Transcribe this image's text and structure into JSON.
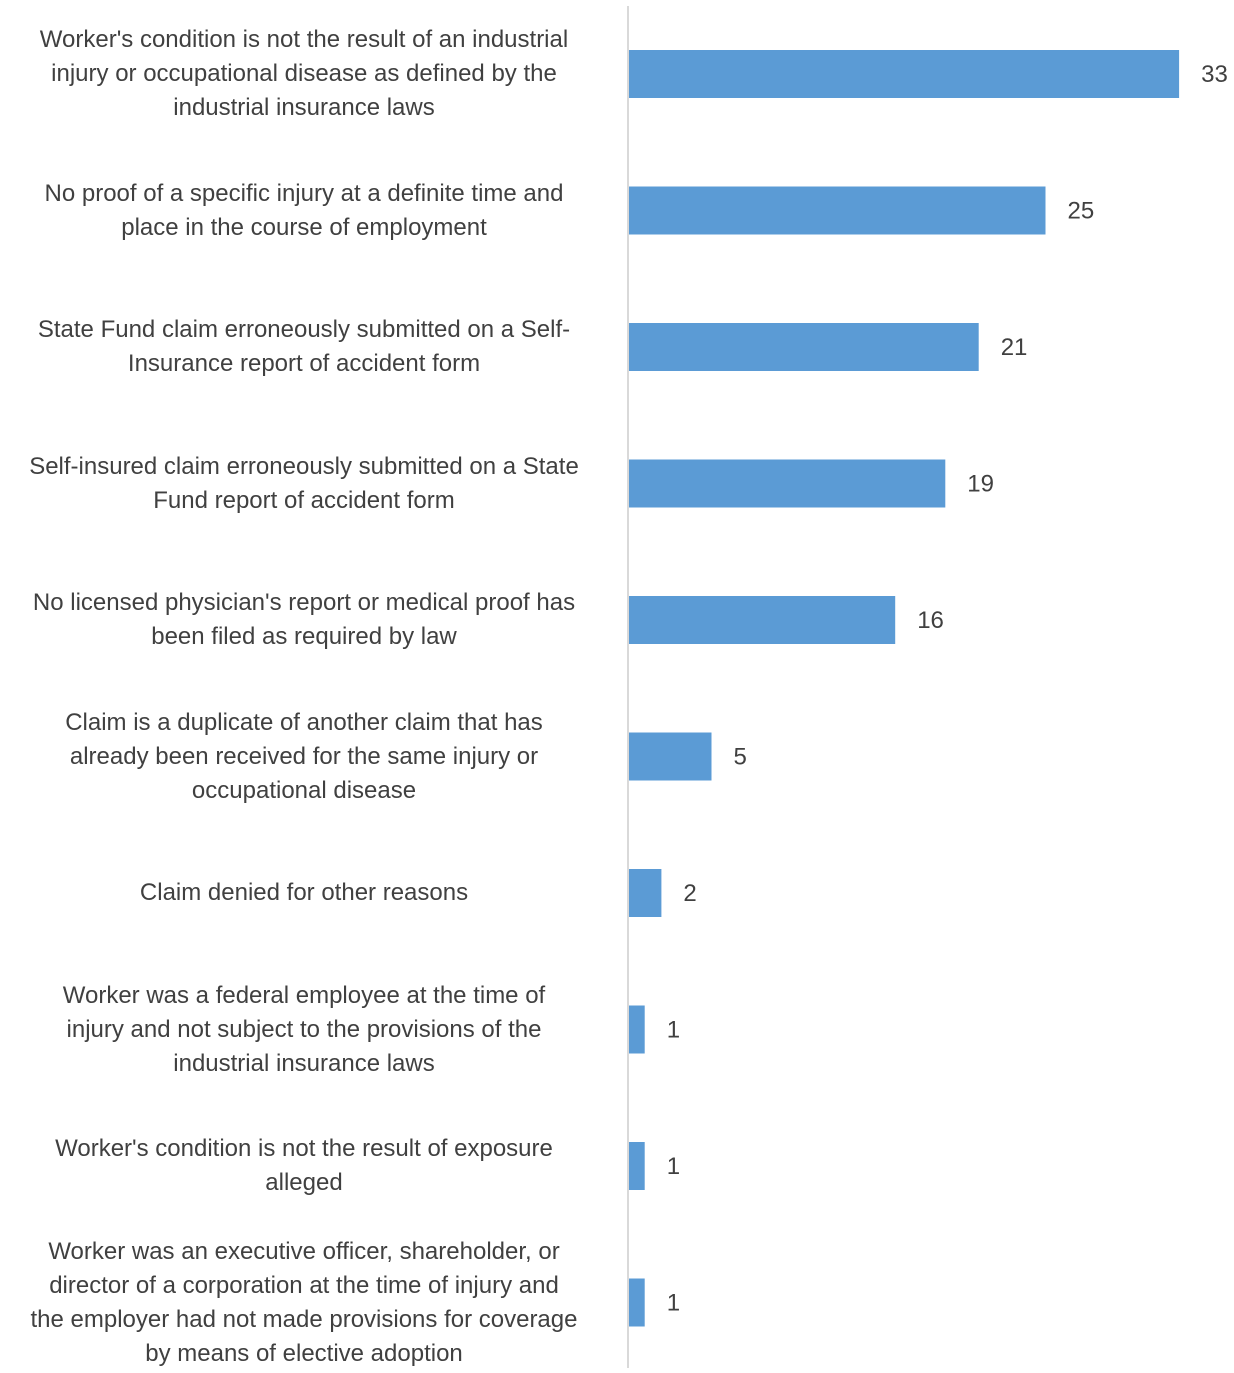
{
  "chart_data": {
    "type": "bar",
    "orientation": "horizontal",
    "title": "",
    "xlabel": "",
    "ylabel": "",
    "bar_color": "#5B9BD5",
    "axis_color": "#D9D9D9",
    "text_color": "#404040",
    "grid": false,
    "legend": "none",
    "xlim": [
      0,
      33
    ],
    "categories": [
      "Worker's condition is not the result of an industrial injury or occupational disease as defined by the industrial insurance laws",
      "No proof of a specific injury at a definite time and place in the course of employment",
      "State Fund claim erroneously submitted on a Self-Insurance report of accident form",
      "Self-insured claim erroneously submitted on a State Fund report of accident form",
      "No licensed physician's report or medical proof has been filed as required by law",
      "Claim is a duplicate of another claim that has already been received for the same injury or occupational disease",
      "Claim denied for other reasons",
      "Worker was a federal employee at the time of injury and not subject to the provisions of the industrial insurance laws",
      "Worker's condition is not the result of exposure alleged",
      "Worker was an executive officer, shareholder, or director of a corporation at the time of injury and the employer had not made provisions for coverage by means of elective adoption"
    ],
    "category_lines": [
      [
        "Worker's condition is not the result of an industrial",
        "injury or occupational disease as defined by the",
        "industrial insurance laws"
      ],
      [
        "No proof of a specific injury at a definite time and",
        "place in the course of employment"
      ],
      [
        "State Fund claim erroneously submitted on a Self-",
        "Insurance report of accident form"
      ],
      [
        "Self-insured claim erroneously submitted on a State",
        "Fund report of accident form"
      ],
      [
        "No licensed physician's report or medical proof has",
        "been filed as required by law"
      ],
      [
        "Claim is a duplicate of another claim that has",
        "already been received for the same injury or",
        "occupational disease"
      ],
      [
        "Claim denied for other reasons"
      ],
      [
        "Worker was a federal employee at the time of",
        "injury and not subject to the provisions of the",
        "industrial insurance laws"
      ],
      [
        "Worker's condition is not the result of exposure",
        "alleged"
      ],
      [
        "Worker was an executive officer, shareholder, or",
        "director of a corporation at the time of injury and",
        "the employer had not made provisions for coverage",
        "by means of elective adoption"
      ]
    ],
    "values": [
      33,
      25,
      21,
      19,
      16,
      5,
      2,
      1,
      1,
      1
    ]
  }
}
